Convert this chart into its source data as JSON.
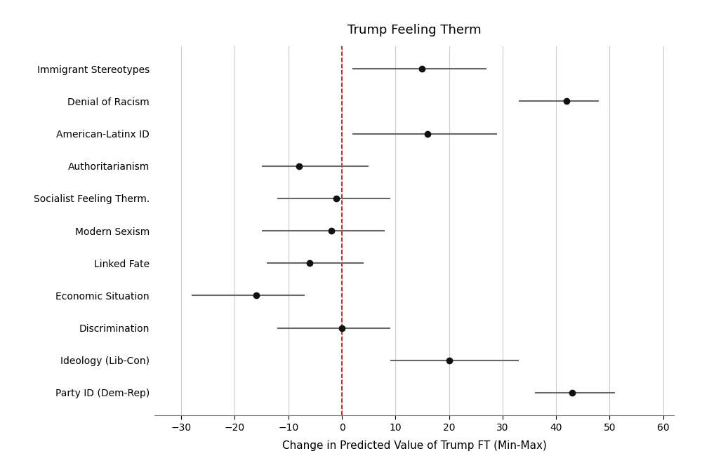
{
  "title": "Trump Feeling Therm",
  "xlabel": "Change in Predicted Value of Trump FT (Min-Max)",
  "labels": [
    "Immigrant Stereotypes",
    "Denial of Racism",
    "American-Latinx ID",
    "Authoritarianism",
    "Socialist Feeling Therm.",
    "Modern Sexism",
    "Linked Fate",
    "Economic Situation",
    "Discrimination",
    "Ideology (Lib-Con)",
    "Party ID (Dem-Rep)"
  ],
  "point_estimates": [
    15,
    42,
    16,
    -8,
    -1,
    -2,
    -6,
    -16,
    0,
    20,
    43
  ],
  "ci_low": [
    2,
    33,
    2,
    -15,
    -12,
    -15,
    -14,
    -28,
    -12,
    9,
    36
  ],
  "ci_high": [
    27,
    48,
    29,
    5,
    9,
    8,
    4,
    -7,
    9,
    33,
    51
  ],
  "xlim": [
    -35,
    62
  ],
  "xticks": [
    -30,
    -20,
    -10,
    0,
    10,
    20,
    30,
    40,
    50,
    60
  ],
  "vline_x": 0,
  "vline_color": "#cc0000",
  "point_color": "#111111",
  "line_color": "#666666",
  "grid_color": "#cccccc",
  "background_color": "#ffffff",
  "plot_bg_color": "#ffffff",
  "title_fontsize": 13,
  "label_fontsize": 10,
  "tick_fontsize": 10,
  "xlabel_fontsize": 11
}
